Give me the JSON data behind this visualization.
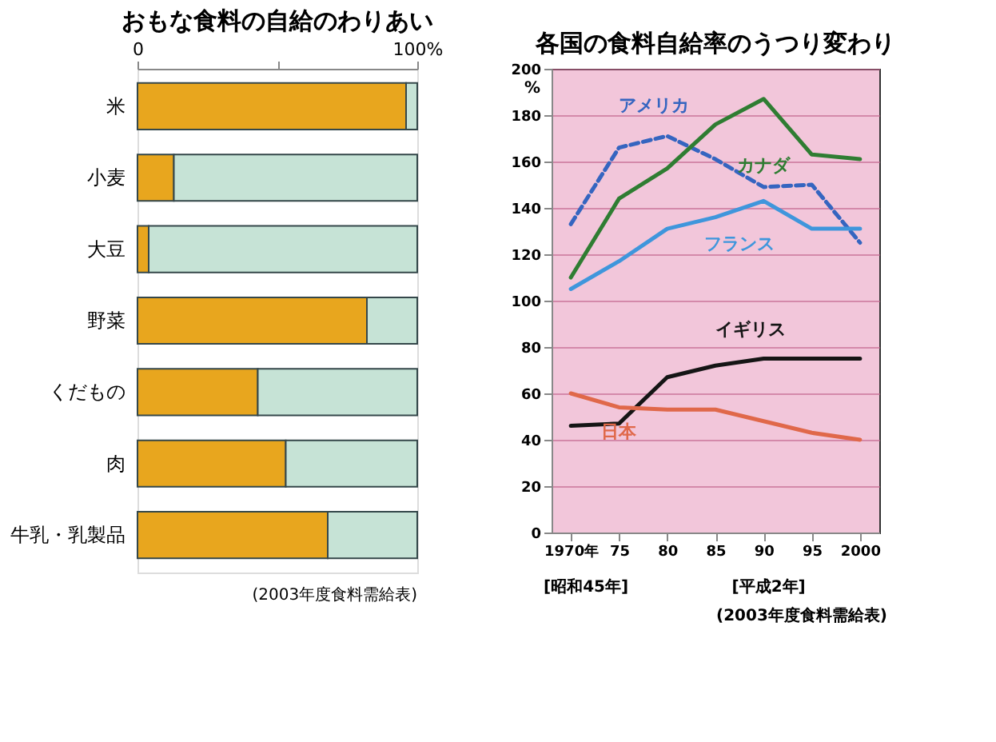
{
  "chart_data": [
    {
      "type": "bar",
      "title": "おもな食料の自給のわりあい",
      "orientation": "horizontal",
      "stacked": true,
      "categories": [
        "米",
        "小麦",
        "大豆",
        "野菜",
        "くだもの",
        "肉",
        "牛乳・乳製品"
      ],
      "series": [
        {
          "color": "#e8a61e",
          "values": [
            96,
            13,
            4,
            82,
            43,
            53,
            68
          ]
        },
        {
          "color": "#c6e3d6",
          "values": [
            4,
            87,
            96,
            18,
            57,
            47,
            32
          ]
        }
      ],
      "xlim": [
        0,
        100
      ],
      "xticks": [
        0,
        {
          "value": 50,
          "label": null
        },
        {
          "value": 100,
          "label": "100%"
        }
      ],
      "grid": false,
      "legend": false,
      "annotations": [
        "(2003年度食料需給表)"
      ]
    },
    {
      "type": "line",
      "title": "各国の食料自給率のうつり変わり",
      "ylabel": "%",
      "x": [
        1970,
        1975,
        1980,
        1985,
        1990,
        1995,
        2000
      ],
      "series": [
        {
          "name": "アメリカ",
          "color": "#3565c0",
          "line_style": "dashed",
          "values": [
            133,
            166,
            171,
            161,
            149,
            150,
            125
          ]
        },
        {
          "name": "カナダ",
          "color": "#2f7d32",
          "values": [
            110,
            144,
            157,
            176,
            187,
            163,
            161
          ]
        },
        {
          "name": "フランス",
          "color": "#3f96dc",
          "values": [
            105,
            117,
            131,
            136,
            143,
            131,
            131
          ]
        },
        {
          "name": "イギリス",
          "color": "#151515",
          "values": [
            46,
            47,
            67,
            72,
            75,
            75,
            75
          ]
        },
        {
          "name": "日本",
          "color": "#e0684a",
          "values": [
            60,
            54,
            53,
            53,
            48,
            43,
            40
          ]
        }
      ],
      "xlim": [
        1968,
        2002
      ],
      "xticks": [
        {
          "value": 1970,
          "label": "1970年"
        },
        {
          "value": 1975,
          "label": "75"
        },
        {
          "value": 1980,
          "label": "80"
        },
        {
          "value": 1985,
          "label": "85"
        },
        {
          "value": 1990,
          "label": "90"
        },
        {
          "value": 1995,
          "label": "95"
        },
        2000
      ],
      "ylim": [
        0,
        200
      ],
      "yticks": [
        0,
        20,
        40,
        60,
        80,
        100,
        120,
        140,
        160,
        180,
        200
      ],
      "grid": "y",
      "legend": false,
      "marker": "none",
      "line_style": "solid",
      "annotations": [
        "[昭和45年]",
        "[平成2年]",
        "(2003年度食料需給表)"
      ]
    }
  ]
}
